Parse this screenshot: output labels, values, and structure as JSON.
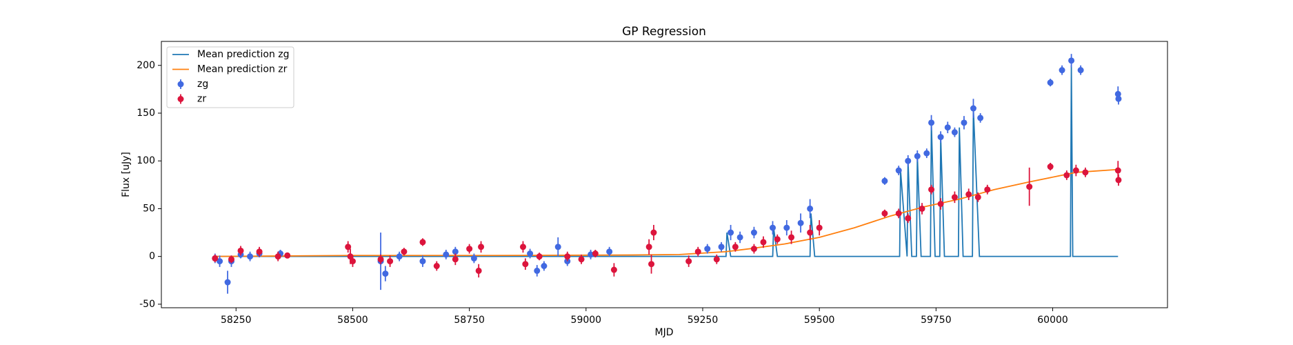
{
  "chart_data": {
    "type": "scatter",
    "title": "GP Regression",
    "x_label": "MJD",
    "y_label": "Flux [uJy]",
    "xlim": [
      58090,
      60246
    ],
    "ylim": [
      -53.7,
      225.1
    ],
    "xticks": [
      58250,
      58500,
      58750,
      59000,
      59250,
      59500,
      59750,
      60000
    ],
    "yticks": [
      -50,
      0,
      50,
      100,
      150,
      200
    ],
    "legend": "upper left",
    "series": [
      {
        "name": "Mean prediction zg",
        "type": "line",
        "color": "#1f77b4",
        "x": [
          58205,
          59250,
          59300,
          59302,
          59310,
          59400,
          59402,
          59410,
          59480,
          59482,
          59490,
          59672,
          59674,
          59688,
          59690,
          59698,
          59708,
          59710,
          59718,
          59738,
          59740,
          59748,
          59758,
          59760,
          59768,
          59798,
          59800,
          59808,
          59828,
          59830,
          59843,
          60038,
          60040,
          60043,
          60140
        ],
        "values": [
          0,
          0,
          0,
          25,
          0,
          0,
          30,
          0,
          0,
          45,
          0,
          0,
          90,
          0,
          100,
          0,
          0,
          105,
          0,
          0,
          140,
          0,
          0,
          125,
          0,
          0,
          135,
          0,
          0,
          155,
          0,
          0,
          200,
          0,
          0
        ]
      },
      {
        "name": "Mean prediction zr",
        "type": "line",
        "color": "#ff7f0e",
        "x": [
          58205,
          58500,
          58800,
          59100,
          59200,
          59300,
          59350,
          59425,
          59500,
          59575,
          59650,
          59725,
          59800,
          59875,
          59950,
          60050,
          60140
        ],
        "values": [
          0,
          1,
          1,
          1.5,
          2,
          5,
          8,
          13,
          20,
          30,
          42,
          52,
          60,
          70,
          78,
          88,
          91
        ]
      },
      {
        "name": "zg",
        "type": "errorbar",
        "color": "#4169e1",
        "x": [
          58205,
          58215,
          58232,
          58240,
          58260,
          58280,
          58300,
          58345,
          58560,
          58570,
          58600,
          58650,
          58700,
          58720,
          58760,
          58880,
          58895,
          58910,
          58940,
          58960,
          59010,
          59050,
          59260,
          59290,
          59310,
          59330,
          59360,
          59400,
          59430,
          59460,
          59480,
          59640,
          59670,
          59690,
          59710,
          59730,
          59740,
          59760,
          59775,
          59790,
          59810,
          59830,
          59845,
          59995,
          60020,
          60040,
          60060,
          60140,
          60141
        ],
        "values": [
          -2,
          -5,
          -27,
          -5,
          2,
          0,
          3,
          3,
          -5,
          -18,
          0,
          -5,
          2,
          5,
          -2,
          3,
          -15,
          -10,
          10,
          -5,
          2,
          5,
          8,
          10,
          25,
          20,
          25,
          30,
          30,
          35,
          50,
          79,
          90,
          100,
          105,
          108,
          140,
          125,
          135,
          130,
          140,
          155,
          145,
          182,
          195,
          205,
          195,
          170,
          165
        ],
        "errors": [
          5,
          6,
          12,
          6,
          4,
          5,
          4,
          4,
          30,
          8,
          5,
          6,
          5,
          5,
          5,
          5,
          6,
          5,
          10,
          5,
          5,
          5,
          5,
          5,
          8,
          6,
          6,
          7,
          8,
          10,
          10,
          4,
          5,
          6,
          6,
          5,
          8,
          6,
          6,
          5,
          7,
          10,
          5,
          4,
          5,
          7,
          5,
          8,
          6
        ]
      },
      {
        "name": "zr",
        "type": "errorbar",
        "color": "#dc143c",
        "x": [
          58205,
          58240,
          58260,
          58300,
          58340,
          58360,
          58490,
          58495,
          58500,
          58560,
          58580,
          58610,
          58650,
          58680,
          58720,
          58750,
          58770,
          58775,
          58865,
          58870,
          58900,
          58960,
          58990,
          59020,
          59060,
          59135,
          59140,
          59145,
          59220,
          59240,
          59280,
          59320,
          59360,
          59380,
          59410,
          59440,
          59480,
          59500,
          59640,
          59670,
          59690,
          59720,
          59740,
          59760,
          59790,
          59820,
          59840,
          59860,
          59950,
          59995,
          60030,
          60050,
          60070,
          60140,
          60141
        ],
        "values": [
          -2,
          -3,
          6,
          5,
          0,
          1,
          10,
          0,
          -5,
          -3,
          -5,
          5,
          15,
          -10,
          -3,
          8,
          -15,
          10,
          10,
          -8,
          0,
          0,
          -3,
          3,
          -14,
          10,
          -8,
          25,
          -5,
          5,
          -3,
          10,
          8,
          15,
          18,
          20,
          25,
          30,
          45,
          45,
          40,
          50,
          70,
          55,
          62,
          65,
          62,
          70,
          73,
          94,
          85,
          90,
          88,
          90,
          80
        ],
        "errors": [
          4,
          4,
          5,
          5,
          5,
          3,
          6,
          8,
          6,
          5,
          6,
          4,
          4,
          5,
          6,
          5,
          7,
          6,
          6,
          6,
          4,
          5,
          5,
          4,
          7,
          8,
          10,
          8,
          6,
          5,
          5,
          5,
          5,
          6,
          5,
          7,
          8,
          8,
          4,
          5,
          5,
          6,
          5,
          6,
          6,
          6,
          5,
          5,
          20,
          4,
          5,
          6,
          5,
          10,
          6
        ]
      }
    ]
  }
}
